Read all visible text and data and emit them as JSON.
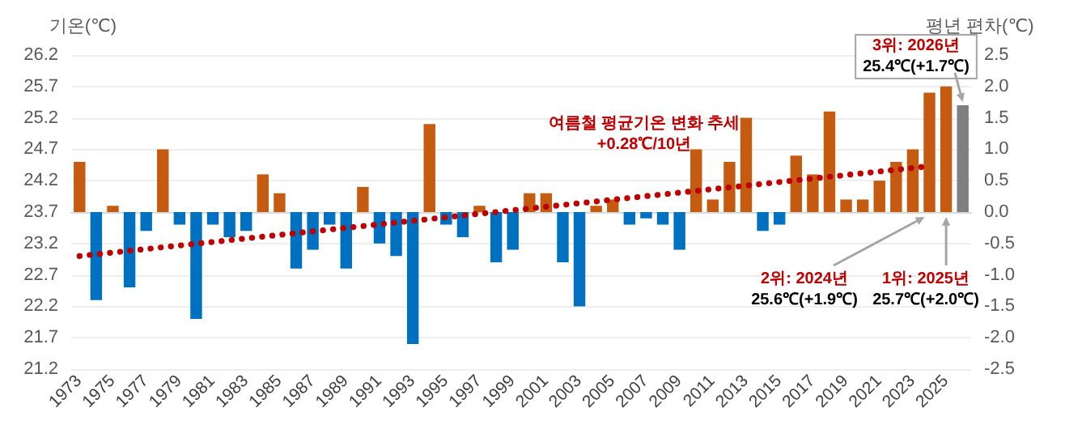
{
  "chart_data": {
    "type": "bar",
    "ylabel": "기온(℃)",
    "y2label": "평년 편차(℃)",
    "categories": [
      "1973",
      null,
      "1975",
      null,
      "1977",
      null,
      "1979",
      null,
      "1981",
      null,
      "1983",
      null,
      "1985",
      null,
      "1987",
      null,
      "1989",
      null,
      "1991",
      null,
      "1993",
      null,
      "1995",
      null,
      "1997",
      null,
      "1999",
      null,
      "2001",
      null,
      "2003",
      null,
      "2005",
      null,
      "2007",
      null,
      "2009",
      null,
      "2011",
      null,
      "2013",
      null,
      "2015",
      null,
      "2017",
      null,
      "2019",
      null,
      "2021",
      null,
      "2023",
      null,
      "2025",
      null
    ],
    "series": [
      {
        "type": "bar",
        "axis": "y2",
        "values": [
          0.8,
          -1.4,
          0.1,
          -1.2,
          -0.3,
          1.0,
          -0.2,
          -1.7,
          -0.2,
          -0.4,
          -0.3,
          0.6,
          0.3,
          -0.9,
          -0.6,
          -0.2,
          -0.9,
          0.4,
          -0.5,
          -0.7,
          -2.1,
          1.4,
          -0.2,
          -0.4,
          0.1,
          -0.8,
          -0.6,
          0.3,
          0.3,
          -0.8,
          -1.5,
          0.1,
          0.2,
          -0.2,
          -0.1,
          -0.2,
          -0.6,
          1.0,
          0.2,
          0.8,
          1.5,
          -0.3,
          -0.2,
          0.9,
          0.6,
          1.6,
          0.2,
          0.2,
          0.5,
          0.8,
          1.0,
          1.9,
          2.0,
          1.7
        ],
        "colors": [
          "#c55a11",
          "#0070c0",
          "#c55a11",
          "#0070c0",
          "#0070c0",
          "#c55a11",
          "#0070c0",
          "#0070c0",
          "#0070c0",
          "#0070c0",
          "#0070c0",
          "#c55a11",
          "#c55a11",
          "#0070c0",
          "#0070c0",
          "#0070c0",
          "#0070c0",
          "#c55a11",
          "#0070c0",
          "#0070c0",
          "#0070c0",
          "#c55a11",
          "#0070c0",
          "#0070c0",
          "#c55a11",
          "#0070c0",
          "#0070c0",
          "#c55a11",
          "#c55a11",
          "#0070c0",
          "#0070c0",
          "#c55a11",
          "#c55a11",
          "#0070c0",
          "#0070c0",
          "#0070c0",
          "#0070c0",
          "#c55a11",
          "#c55a11",
          "#c55a11",
          "#c55a11",
          "#0070c0",
          "#0070c0",
          "#c55a11",
          "#c55a11",
          "#c55a11",
          "#c55a11",
          "#c55a11",
          "#c55a11",
          "#c55a11",
          "#c55a11",
          "#c55a11",
          "#c55a11",
          "#7f7f7f"
        ]
      },
      {
        "type": "line",
        "axis": "y2",
        "color": "#c00000",
        "line_style": "dotted",
        "marker": "none",
        "values": [
          -0.7,
          null,
          null,
          null,
          null,
          null,
          null,
          null,
          null,
          null,
          null,
          null,
          null,
          null,
          null,
          null,
          null,
          null,
          null,
          null,
          null,
          null,
          null,
          null,
          null,
          null,
          null,
          null,
          null,
          null,
          null,
          null,
          null,
          null,
          null,
          null,
          null,
          null,
          null,
          null,
          null,
          null,
          null,
          null,
          null,
          null,
          null,
          null,
          null,
          null,
          null,
          0.73,
          null,
          null
        ]
      }
    ],
    "ylim": [
      21.2,
      26.2
    ],
    "yticks": [
      21.2,
      21.7,
      22.2,
      22.7,
      23.2,
      23.7,
      24.2,
      24.7,
      25.2,
      25.7,
      26.2
    ],
    "y2lim": [
      -2.5,
      2.5
    ],
    "y2ticks": [
      -2.5,
      {
        "value": -2,
        "label": "-2.0"
      },
      -1.5,
      {
        "value": -1,
        "label": "-1.0"
      },
      -0.5,
      {
        "value": 0,
        "label": "0.0"
      },
      0.5,
      {
        "value": 1,
        "label": "1.0"
      },
      1.5,
      {
        "value": 2,
        "label": "2.0"
      },
      2.5
    ],
    "grid": "y",
    "legend": false,
    "annotations": [
      "여름철 평균기온 변화 추세\n+0.28℃/10년",
      "3위: 2026년\n25.4℃(+1.7℃)",
      "2위: 2024년\n25.6℃(+1.9℃)",
      "1위: 2025년\n25.7℃(+2.0℃)"
    ]
  }
}
